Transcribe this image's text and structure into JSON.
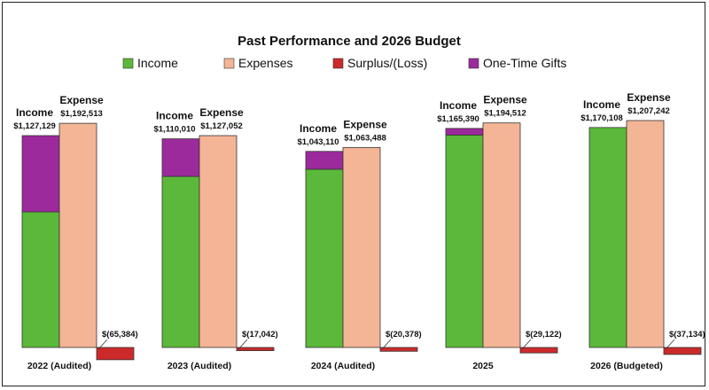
{
  "chart_data": {
    "type": "bar",
    "title": "Past Performance and 2026 Budget",
    "legend": [
      {
        "name": "Income",
        "color": "#5cb83a"
      },
      {
        "name": "Expenses",
        "color": "#f4b596"
      },
      {
        "name": "Surplus/(Loss)",
        "color": "#cc2a2a"
      },
      {
        "name": "One-Time Gifts",
        "color": "#9c2a9c"
      }
    ],
    "income_label": "Income",
    "expense_label": "Expense",
    "ylim": [
      -65384,
      1207242
    ],
    "groups": [
      {
        "category": "2022 (Audited)",
        "income_total": 1127129,
        "income_total_text": "$1,127,129",
        "income_gifts_portion": 406000,
        "expense": 1192513,
        "expense_text": "$1,192,513",
        "surplus": -65384,
        "surplus_text": "$(65,384)"
      },
      {
        "category": "2023 (Audited)",
        "income_total": 1110010,
        "income_total_text": "$1,110,010",
        "income_gifts_portion": 200000,
        "expense": 1127052,
        "expense_text": "$1,127,052",
        "surplus": -17042,
        "surplus_text": "$(17,042)"
      },
      {
        "category": "2024 (Audited)",
        "income_total": 1043110,
        "income_total_text": "$1,043,110",
        "income_gifts_portion": 95000,
        "expense": 1063488,
        "expense_text": "$1,063,488",
        "surplus": -20378,
        "surplus_text": "$(20,378)"
      },
      {
        "category": "2025",
        "income_total": 1165390,
        "income_total_text": "$1,165,390",
        "income_gifts_portion": 35000,
        "expense": 1194512,
        "expense_text": "$1,194,512",
        "surplus": -29122,
        "surplus_text": "$(29,122)"
      },
      {
        "category": "2026 (Budgeted)",
        "income_total": 1170108,
        "income_total_text": "$1,170,108",
        "income_gifts_portion": 0,
        "expense": 1207242,
        "expense_text": "$1,207,242",
        "surplus": -37134,
        "surplus_text": "$(37,134)"
      }
    ]
  }
}
